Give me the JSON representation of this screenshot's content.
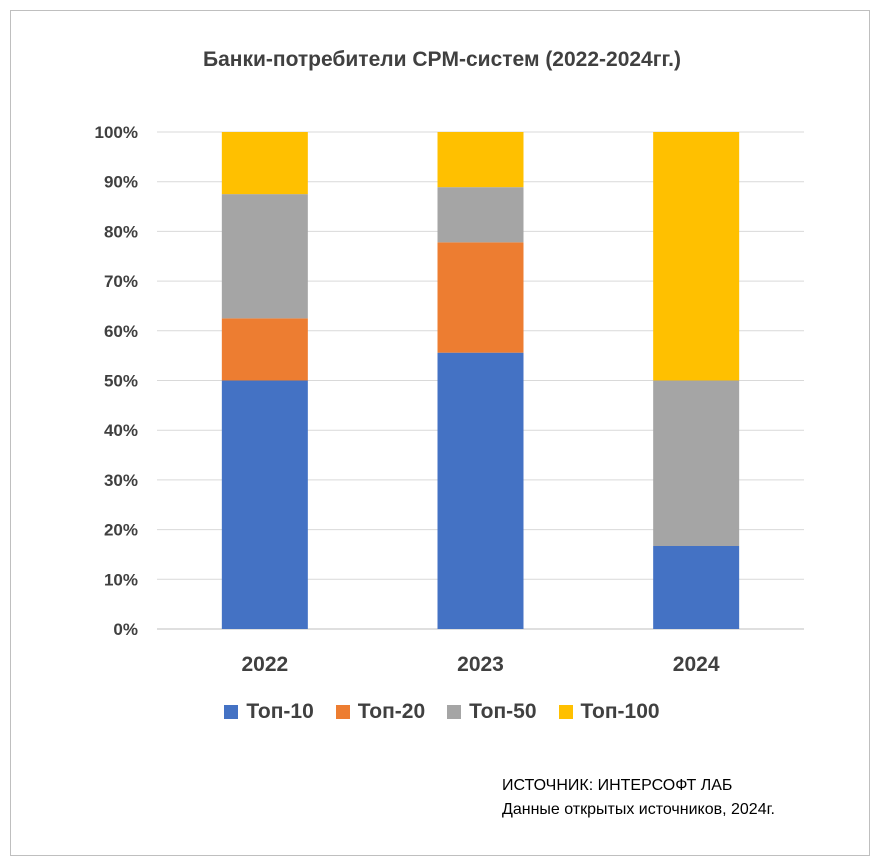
{
  "chart_data": {
    "type": "bar",
    "stacked": true,
    "title": "Банки-потребители CPM-систем (2022-2024гг.)",
    "categories": [
      "2022",
      "2023",
      "2024"
    ],
    "series": [
      {
        "name": "Топ-10",
        "color": "#4472C4",
        "values": [
          50.0,
          55.6,
          16.7
        ]
      },
      {
        "name": "Топ-20",
        "color": "#ED7D31",
        "values": [
          12.5,
          22.2,
          0
        ]
      },
      {
        "name": "Топ-50",
        "color": "#A5A5A5",
        "values": [
          25.0,
          11.1,
          33.3
        ]
      },
      {
        "name": "Топ-100",
        "color": "#FFC000",
        "values": [
          12.5,
          11.1,
          50.0
        ]
      }
    ],
    "yticks": [
      "0%",
      "10%",
      "20%",
      "30%",
      "40%",
      "50%",
      "60%",
      "70%",
      "80%",
      "90%",
      "100%"
    ],
    "ylim": [
      0,
      100
    ],
    "xlabel": "",
    "ylabel": "",
    "legend": "bottom",
    "grid": true
  },
  "source": {
    "line1": "ИСТОЧНИК: ИНТЕРСОФТ ЛАБ",
    "line2": "Данные открытых источников, 2024г."
  }
}
